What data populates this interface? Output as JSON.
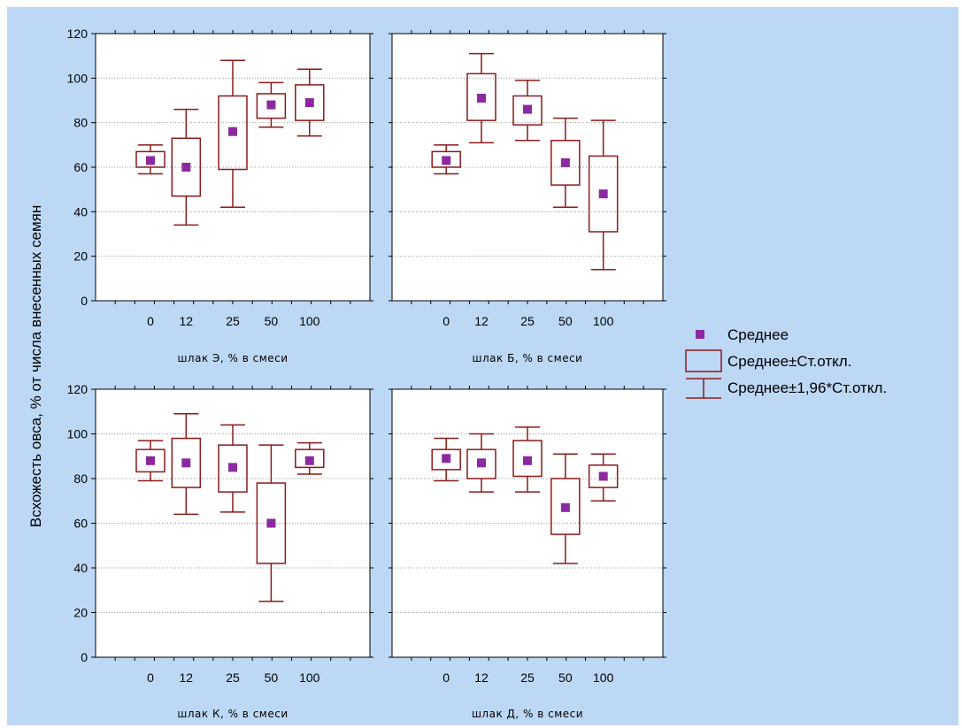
{
  "colors": {
    "background": "#bcd8f5",
    "plot_bg": "#ffffff",
    "box": "#8b1a1a",
    "mean": "#8b2aa0",
    "grid": "#9a9a9a"
  },
  "icons": {
    "legend_mean": "filled-square-marker",
    "legend_box": "rectangle-box",
    "legend_whisker": "whisker-i-beam"
  },
  "legend": {
    "mean": "Среднее",
    "box": "Среднее±Ст.откл.",
    "whisker": "Среднее±1,96*Ст.откл."
  },
  "chart_data": {
    "type": "box",
    "ylabel": "Всхожесть овса, % от числа внесенных семян",
    "ylim": [
      0,
      120
    ],
    "yticks": [
      0,
      20,
      40,
      60,
      80,
      100,
      120
    ],
    "grid": true,
    "legend_position": "right",
    "panels": [
      {
        "xlabel": "шлак Э, % в смеси",
        "categories": [
          "0",
          "12",
          "25",
          "50",
          "100"
        ],
        "mean": [
          63,
          60,
          76,
          88,
          89
        ],
        "box_low": [
          60,
          47,
          59,
          82,
          81
        ],
        "box_high": [
          67,
          73,
          92,
          93,
          97
        ],
        "whisk_low": [
          57,
          34,
          42,
          78,
          74
        ],
        "whisk_high": [
          70,
          86,
          108,
          98,
          104
        ]
      },
      {
        "xlabel": "шлак Б, % в смеси",
        "categories": [
          "0",
          "12",
          "25",
          "50",
          "100"
        ],
        "mean": [
          63,
          91,
          86,
          62,
          48
        ],
        "box_low": [
          60,
          81,
          79,
          52,
          31
        ],
        "box_high": [
          67,
          102,
          92,
          72,
          65
        ],
        "whisk_low": [
          57,
          71,
          72,
          42,
          14
        ],
        "whisk_high": [
          70,
          111,
          99,
          82,
          81
        ]
      },
      {
        "xlabel": "шлак К, % в смеси",
        "categories": [
          "0",
          "12",
          "25",
          "50",
          "100"
        ],
        "mean": [
          88,
          87,
          85,
          60,
          88
        ],
        "box_low": [
          83,
          76,
          74,
          42,
          85
        ],
        "box_high": [
          93,
          98,
          95,
          78,
          93
        ],
        "whisk_low": [
          79,
          64,
          65,
          25,
          82
        ],
        "whisk_high": [
          97,
          109,
          104,
          95,
          96
        ]
      },
      {
        "xlabel": "шлак Д, % в смеси",
        "categories": [
          "0",
          "12",
          "25",
          "50",
          "100"
        ],
        "mean": [
          89,
          87,
          88,
          67,
          81
        ],
        "box_low": [
          84,
          80,
          81,
          55,
          76
        ],
        "box_high": [
          93,
          93,
          97,
          80,
          86
        ],
        "whisk_low": [
          79,
          74,
          74,
          42,
          70
        ],
        "whisk_high": [
          98,
          100,
          103,
          91,
          91
        ]
      }
    ]
  }
}
